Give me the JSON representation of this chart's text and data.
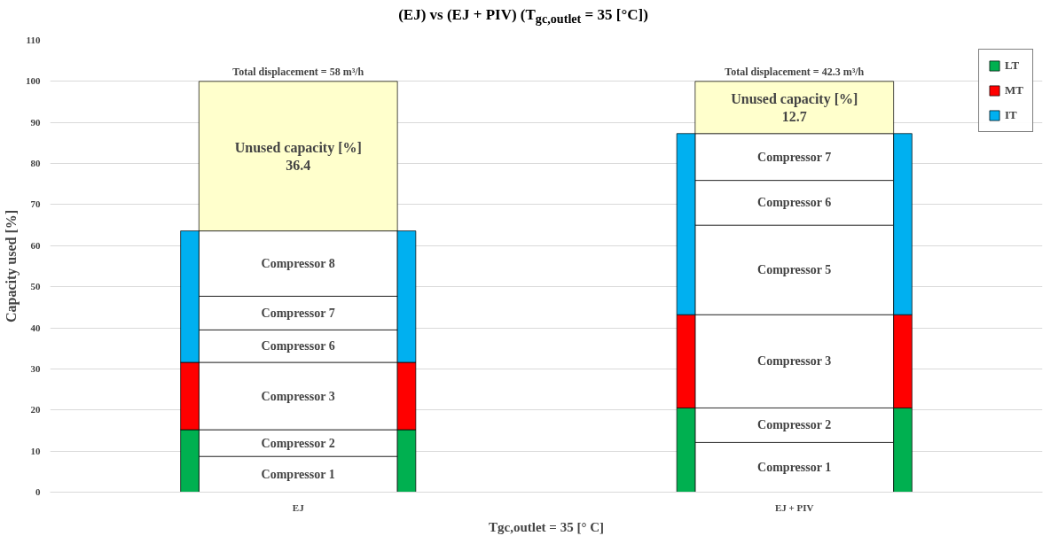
{
  "chart_data": [
    {
      "type": "bar",
      "stacked": true,
      "title": "(EJ) vs (EJ + PIV) (T$_{gc,outlet}$ = 35 [°C])",
      "xlabel": "Tgc,outlet = 35 [° C]",
      "ylabel": "Capacity used [%]",
      "categories": [
        "EJ",
        "EJ + PIV"
      ],
      "ylim": [
        0,
        110
      ],
      "yticks": [
        0,
        10,
        20,
        30,
        40,
        50,
        60,
        70,
        80,
        90,
        100,
        110
      ],
      "grid": "y",
      "series": [
        {
          "name": "Compressor 1",
          "color": "#ffffff",
          "values": [
            8.7,
            12.1
          ]
        },
        {
          "name": "Compressor 2",
          "color": "#ffffff",
          "values": [
            6.5,
            8.4
          ]
        },
        {
          "name": "Compressor 3",
          "color": "#ffffff",
          "values": [
            16.4,
            22.7
          ]
        },
        {
          "name": "Compressor 5",
          "color": "#ffffff",
          "values": [
            null,
            21.8
          ]
        },
        {
          "name": "Compressor 6",
          "color": "#ffffff",
          "values": [
            7.9,
            10.9
          ]
        },
        {
          "name": "Compressor 7",
          "color": "#ffffff",
          "values": [
            8.2,
            11.4
          ]
        },
        {
          "name": "Compressor 8",
          "color": "#ffffff",
          "values": [
            15.9,
            null
          ]
        },
        {
          "name": "Unused capacity [%]",
          "color": "#ffffcc",
          "values": [
            36.4,
            12.7
          ],
          "value_labels": [
            "36.4",
            "12.7"
          ]
        }
      ],
      "annotations": [
        {
          "text": "Total displacement = 58 m³/h",
          "x": "EJ",
          "y": 100
        },
        {
          "text": "Total displacement = 42.3 m³/h",
          "x": "EJ + PIV",
          "y": 100
        }
      ]
    },
    {
      "type": "bar",
      "stacked": true,
      "categories": [
        null,
        null
      ],
      "ylim": [
        0,
        110
      ],
      "legend": "top right",
      "series": [
        {
          "name": "LT",
          "color": "#00b050",
          "values": [
            15.2,
            20.5
          ]
        },
        {
          "name": "MT",
          "color": "#ff0000",
          "values": [
            16.4,
            22.7
          ]
        },
        {
          "name": "IT",
          "color": "#00b0f0",
          "values": [
            32.0,
            44.1
          ]
        }
      ]
    }
  ]
}
